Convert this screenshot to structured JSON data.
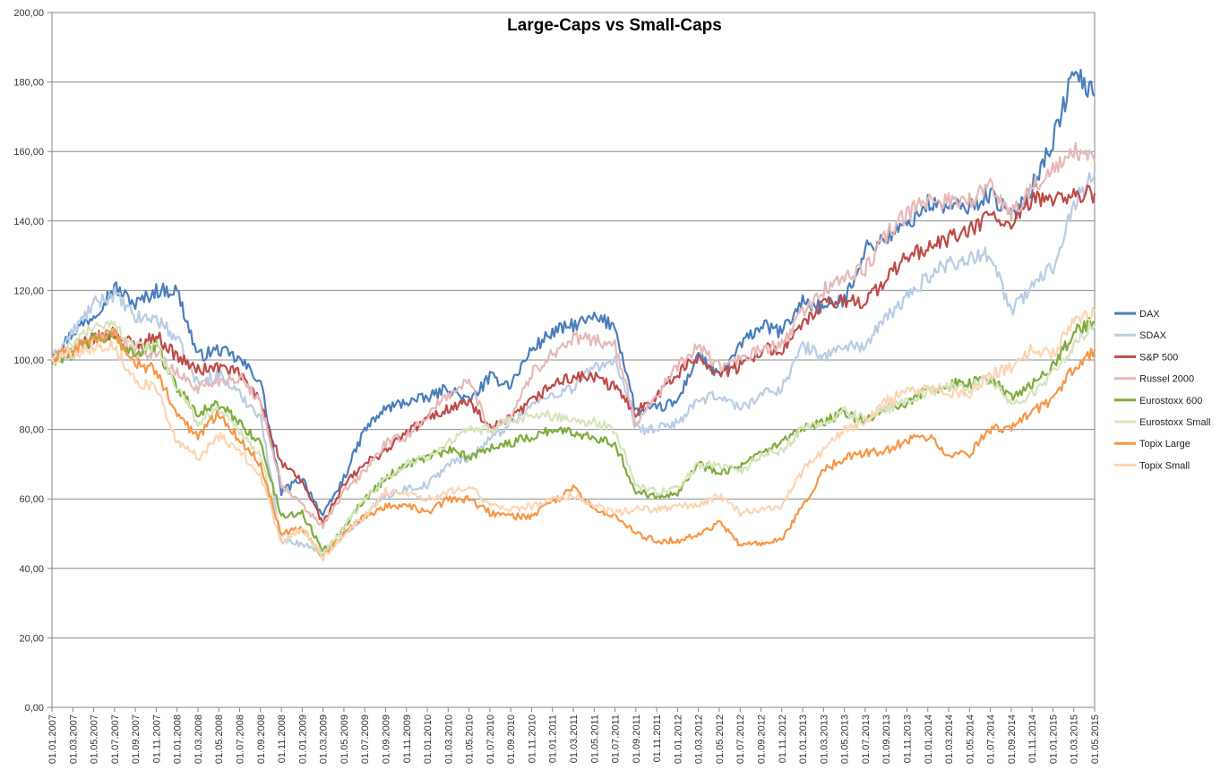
{
  "chart_data": {
    "type": "line",
    "title": "Large-Caps vs Small-Caps",
    "xlabel": "",
    "ylabel": "",
    "ylim": [
      0,
      200
    ],
    "y_ticks": [
      "0,00",
      "20,00",
      "40,00",
      "60,00",
      "80,00",
      "100,00",
      "120,00",
      "140,00",
      "160,00",
      "180,00",
      "200,00"
    ],
    "x_ticks": [
      "01.01.2007",
      "01.03.2007",
      "01.05.2007",
      "01.07.2007",
      "01.09.2007",
      "01.11.2007",
      "01.01.2008",
      "01.03.2008",
      "01.05.2008",
      "01.07.2008",
      "01.09.2008",
      "01.11.2008",
      "01.01.2009",
      "01.03.2009",
      "01.05.2009",
      "01.07.2009",
      "01.09.2009",
      "01.11.2009",
      "01.01.2010",
      "01.03.2010",
      "01.05.2010",
      "01.07.2010",
      "01.09.2010",
      "01.11.2010",
      "01.01.2011",
      "01.03.2011",
      "01.05.2011",
      "01.07.2011",
      "01.09.2011",
      "01.11.2011",
      "01.01.2012",
      "01.03.2012",
      "01.05.2012",
      "01.07.2012",
      "01.09.2012",
      "01.11.2012",
      "01.01.2013",
      "01.03.2013",
      "01.05.2013",
      "01.07.2013",
      "01.09.2013",
      "01.11.2013",
      "01.01.2014",
      "01.03.2014",
      "01.05.2014",
      "01.07.2014",
      "01.09.2014",
      "01.11.2014",
      "01.01.2015",
      "01.03.2015",
      "01.05.2015"
    ],
    "grid": true,
    "legend_position": "right",
    "x": [
      "01.01.2007",
      "01.03.2007",
      "01.05.2007",
      "01.07.2007",
      "01.09.2007",
      "01.11.2007",
      "01.01.2008",
      "01.03.2008",
      "01.05.2008",
      "01.07.2008",
      "01.09.2008",
      "01.11.2008",
      "01.01.2009",
      "01.03.2009",
      "01.05.2009",
      "01.07.2009",
      "01.09.2009",
      "01.11.2009",
      "01.01.2010",
      "01.03.2010",
      "01.05.2010",
      "01.07.2010",
      "01.09.2010",
      "01.11.2010",
      "01.01.2011",
      "01.03.2011",
      "01.05.2011",
      "01.07.2011",
      "01.09.2011",
      "01.11.2011",
      "01.01.2012",
      "01.03.2012",
      "01.05.2012",
      "01.07.2012",
      "01.09.2012",
      "01.11.2012",
      "01.01.2013",
      "01.03.2013",
      "01.05.2013",
      "01.07.2013",
      "01.09.2013",
      "01.11.2013",
      "01.01.2014",
      "01.03.2014",
      "01.05.2014",
      "01.07.2014",
      "01.09.2014",
      "01.11.2014",
      "01.01.2015",
      "01.03.2015",
      "01.05.2015"
    ],
    "series": [
      {
        "name": "DAX",
        "color": "#4a7ebb",
        "values": [
          100,
          108,
          113,
          121,
          116,
          120,
          120,
          101,
          103,
          100,
          94,
          62,
          66,
          55,
          66,
          80,
          86,
          88,
          89,
          92,
          88,
          95,
          93,
          103,
          108,
          110,
          112,
          110,
          85,
          86,
          88,
          102,
          95,
          104,
          110,
          108,
          117,
          115,
          117,
          132,
          135,
          139,
          145,
          144,
          144,
          148,
          141,
          150,
          163,
          183,
          176
        ]
      },
      {
        "name": "SDAX",
        "color": "#b9cde5",
        "values": [
          100,
          108,
          116,
          119,
          112,
          112,
          106,
          93,
          96,
          90,
          84,
          48,
          47,
          45,
          50,
          55,
          61,
          63,
          64,
          70,
          72,
          77,
          82,
          87,
          90,
          92,
          98,
          100,
          80,
          80,
          82,
          88,
          90,
          86,
          90,
          92,
          104,
          101,
          104,
          104,
          112,
          118,
          124,
          128,
          129,
          131,
          114,
          121,
          127,
          145,
          154
        ]
      },
      {
        "name": "S&P 500",
        "color": "#be4b48",
        "values": [
          100,
          103,
          106,
          108,
          104,
          107,
          101,
          97,
          98,
          96,
          88,
          70,
          65,
          53,
          64,
          70,
          74,
          79,
          83,
          86,
          88,
          80,
          83,
          88,
          93,
          95,
          95,
          92,
          85,
          90,
          96,
          101,
          96,
          98,
          103,
          103,
          110,
          116,
          117,
          117,
          123,
          130,
          132,
          135,
          137,
          142,
          138,
          146,
          147,
          147,
          148
        ]
      },
      {
        "name": "Russel 2000",
        "color": "#e6b9b8",
        "values": [
          100,
          104,
          106,
          108,
          102,
          102,
          96,
          92,
          94,
          95,
          88,
          64,
          58,
          52,
          62,
          68,
          76,
          78,
          84,
          90,
          94,
          80,
          84,
          96,
          102,
          106,
          106,
          104,
          82,
          90,
          98,
          104,
          98,
          100,
          103,
          104,
          114,
          120,
          124,
          126,
          136,
          142,
          146,
          146,
          146,
          150,
          142,
          150,
          154,
          160,
          157
        ]
      },
      {
        "name": "Eurostoxx 600",
        "color": "#7fac3e",
        "values": [
          100,
          102,
          106,
          106,
          102,
          104,
          92,
          85,
          87,
          82,
          76,
          55,
          56,
          45,
          52,
          60,
          66,
          70,
          72,
          74,
          72,
          75,
          76,
          78,
          80,
          79,
          78,
          76,
          62,
          61,
          62,
          70,
          68,
          69,
          73,
          76,
          80,
          82,
          85,
          82,
          86,
          88,
          91,
          93,
          93,
          95,
          89,
          93,
          98,
          108,
          111
        ]
      },
      {
        "name": "Eurostoxx Small",
        "color": "#d7e4bd",
        "values": [
          100,
          104,
          110,
          110,
          104,
          104,
          92,
          82,
          86,
          80,
          72,
          50,
          50,
          44,
          52,
          60,
          66,
          70,
          72,
          76,
          80,
          80,
          82,
          84,
          84,
          83,
          82,
          80,
          64,
          62,
          63,
          70,
          70,
          68,
          72,
          74,
          80,
          82,
          85,
          83,
          86,
          88,
          91,
          92,
          92,
          95,
          87,
          90,
          96,
          104,
          110
        ]
      },
      {
        "name": "Topix Large",
        "color": "#f79646",
        "values": [
          100,
          103,
          106,
          107,
          99,
          97,
          84,
          78,
          85,
          77,
          70,
          50,
          52,
          43,
          50,
          55,
          58,
          58,
          56,
          60,
          60,
          56,
          55,
          55,
          59,
          63,
          57,
          55,
          50,
          48,
          48,
          50,
          53,
          47,
          47,
          48,
          58,
          68,
          72,
          73,
          74,
          77,
          78,
          73,
          73,
          80,
          80,
          85,
          88,
          98,
          103
        ]
      },
      {
        "name": "Topix Small",
        "color": "#fcd5b5",
        "values": [
          100,
          102,
          104,
          104,
          94,
          92,
          76,
          72,
          78,
          74,
          67,
          47,
          52,
          43,
          50,
          55,
          62,
          62,
          60,
          62,
          64,
          58,
          57,
          58,
          60,
          61,
          58,
          56,
          57,
          57,
          58,
          58,
          61,
          56,
          57,
          58,
          68,
          74,
          80,
          82,
          88,
          91,
          92,
          90,
          90,
          96,
          98,
          103,
          102,
          111,
          114
        ]
      }
    ]
  }
}
